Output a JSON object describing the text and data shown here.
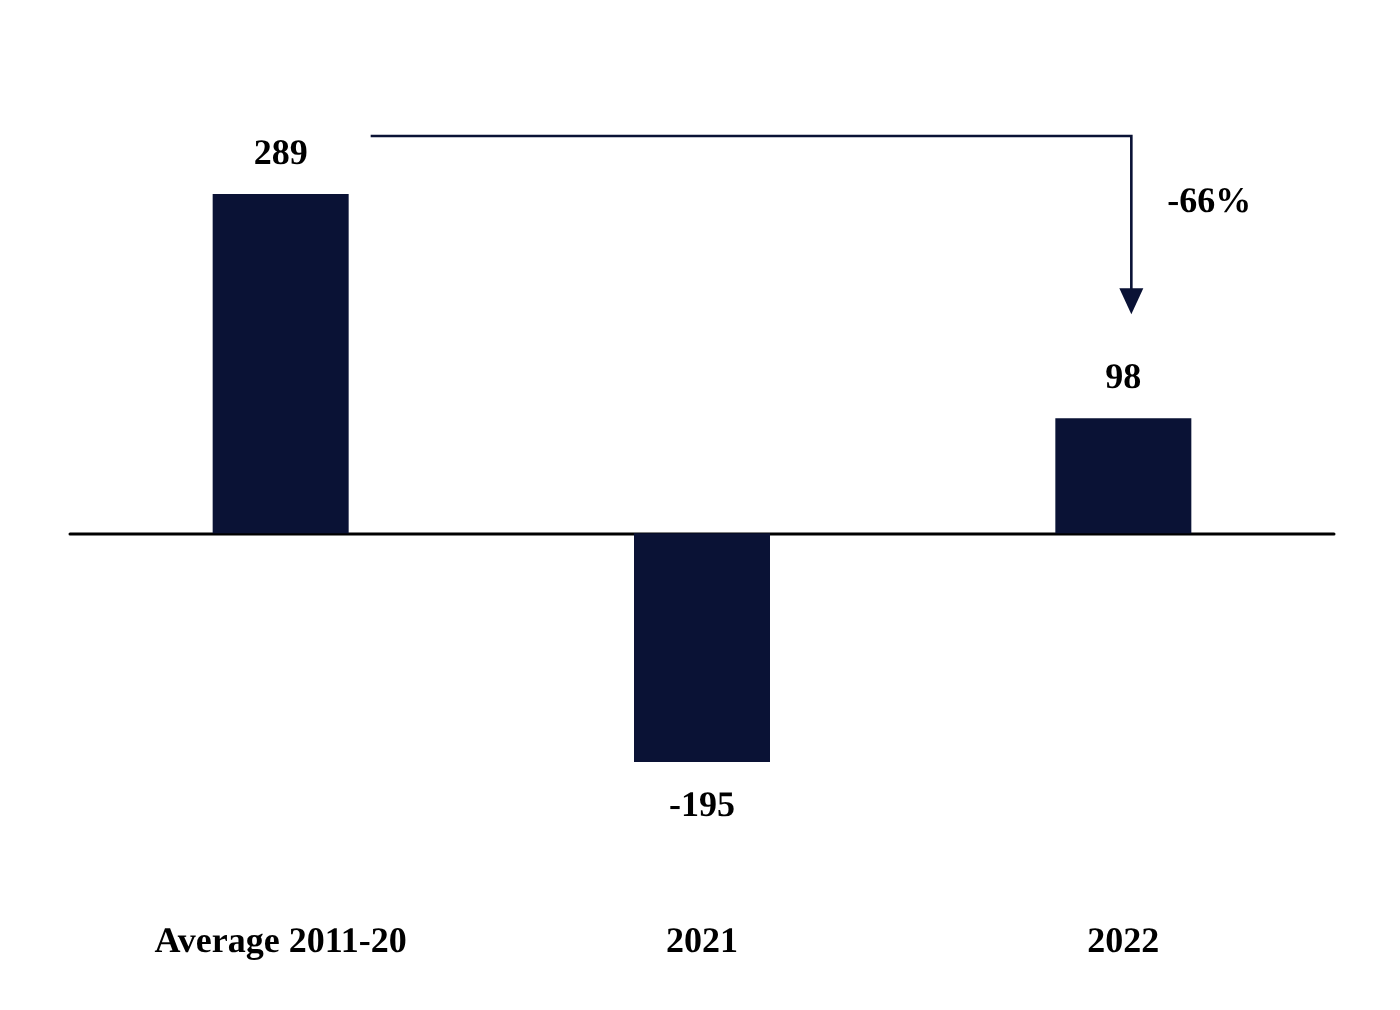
{
  "chart_data": {
    "type": "bar",
    "categories": [
      "Average 2011-20",
      "2021",
      "2022"
    ],
    "values": [
      289,
      -195,
      98
    ],
    "color": "#0a1235",
    "data_labels": true,
    "annotations": [
      "-66%"
    ]
  }
}
